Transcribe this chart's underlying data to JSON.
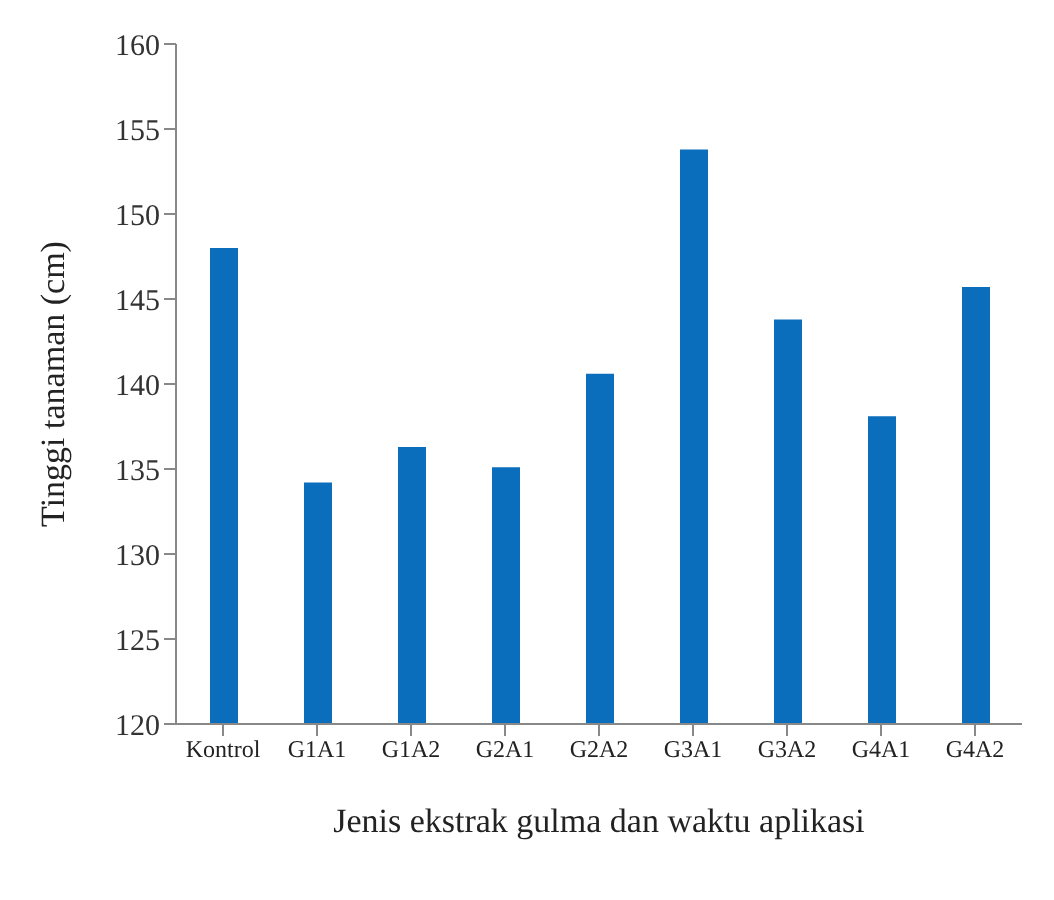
{
  "chart_data": {
    "type": "bar",
    "xlabel": "Jenis ekstrak gulma dan waktu aplikasi",
    "ylabel": "Tinggi  tanaman (cm)",
    "categories": [
      "Kontrol",
      "G1A1",
      "G1A2",
      "G2A1",
      "G2A2",
      "G3A1",
      "G3A2",
      "G4A1",
      "G4A2"
    ],
    "values": [
      148.0,
      134.2,
      136.3,
      135.1,
      140.6,
      153.8,
      143.8,
      138.1,
      145.7
    ],
    "color": "#0a6ebd",
    "ylim": [
      120,
      160
    ],
    "yticks": [
      120,
      125,
      130,
      135,
      140,
      145,
      150,
      155,
      160
    ],
    "grid": false
  }
}
